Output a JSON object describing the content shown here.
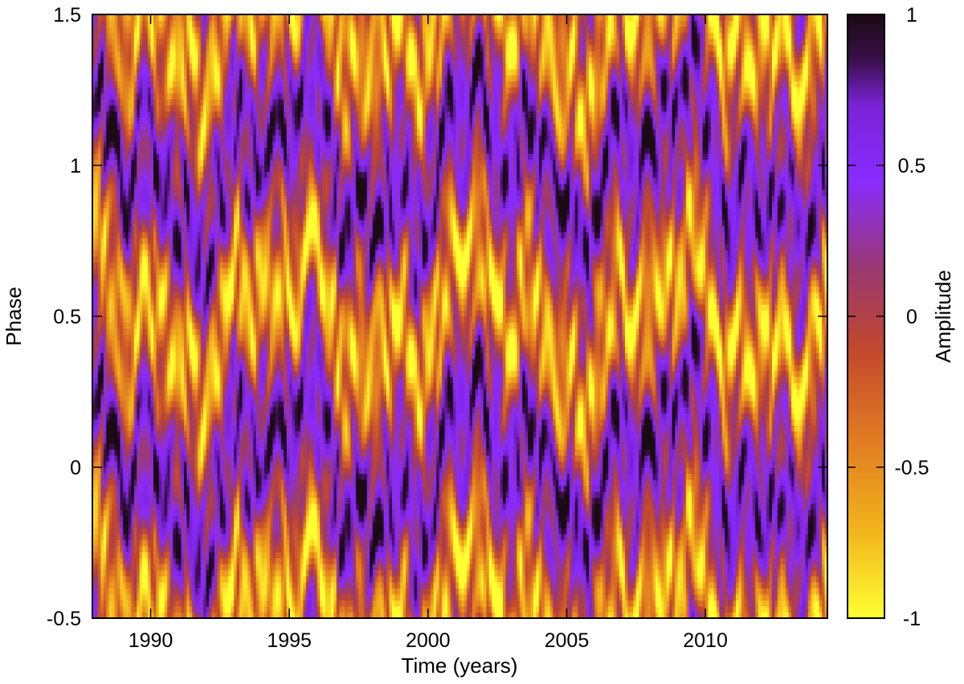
{
  "chart_data": {
    "type": "heatmap",
    "title": "",
    "xlabel": "Time (years)",
    "ylabel": "Phase",
    "colorbar_label": "Amplitude",
    "xlim": [
      1987.9,
      2014.4
    ],
    "ylim": [
      -0.5,
      1.5
    ],
    "x_ticks": [
      1990,
      1995,
      2000,
      2005,
      2010
    ],
    "x_tick_labels": [
      "1990",
      "1995",
      "2000",
      "2005",
      "2010"
    ],
    "y_ticks": [
      -0.5,
      0,
      0.5,
      1,
      1.5
    ],
    "y_tick_labels": [
      "-0.5",
      "0",
      "0.5",
      "1",
      "1.5"
    ],
    "color_range": [
      -1,
      1
    ],
    "colorbar_ticks": [
      -1,
      -0.5,
      0,
      0.5,
      1
    ],
    "colorbar_tick_labels": [
      "-1",
      "-0.5",
      "0",
      "0.5",
      "1"
    ],
    "colormap": [
      {
        "value": -1.0,
        "color": "#ffff33"
      },
      {
        "value": -0.7,
        "color": "#f2b21b"
      },
      {
        "value": -0.4,
        "color": "#e07a22"
      },
      {
        "value": -0.1,
        "color": "#c0462e"
      },
      {
        "value": 0.15,
        "color": "#9a3a6e"
      },
      {
        "value": 0.45,
        "color": "#8a2bff"
      },
      {
        "value": 0.7,
        "color": "#7a22d6"
      },
      {
        "value": 0.85,
        "color": "#3a0f4a"
      },
      {
        "value": 1.0,
        "color": "#1a0a12"
      }
    ],
    "field_period_in_phase": 1,
    "notes_values": {
      "nx": 265,
      "ny": 100
    }
  }
}
